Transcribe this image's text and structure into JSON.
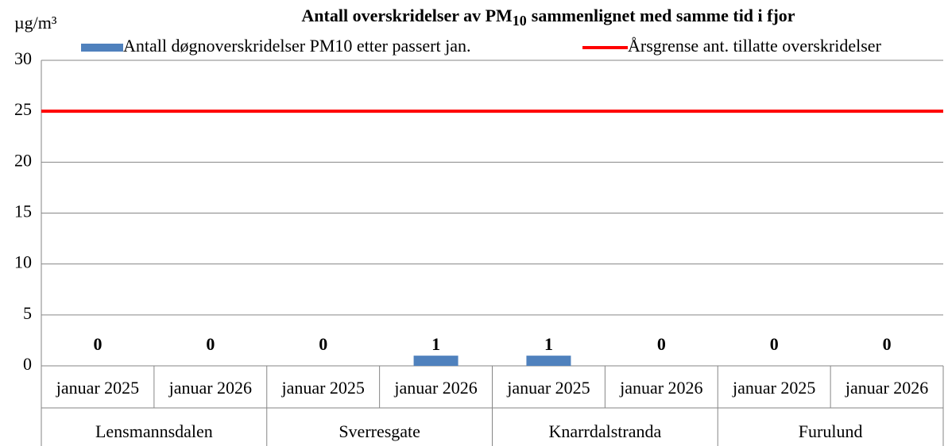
{
  "chart_data": {
    "type": "bar",
    "title": [
      "Antall overskridelser av PM",
      "10",
      "sammenlignet med samme tid i fjor"
    ],
    "y_label": "µg/m³",
    "categories": [
      "januar 2025",
      "januar 2026",
      "januar 2025",
      "januar 2026",
      "januar 2025",
      "januar 2026",
      "januar 2025",
      "januar 2026"
    ],
    "groups": [
      "Lensmannsdalen",
      "Sverresgate",
      "Knarrdalstranda",
      "Furulund"
    ],
    "series": [
      {
        "name": "Antall døgnoverskridelser PM10 etter passert jan.",
        "type": "bar",
        "color": "#4f81bd",
        "values": [
          0,
          0,
          0,
          1,
          1,
          0,
          0,
          0
        ]
      },
      {
        "name": "Årsgrense ant. tillatte overskridelser",
        "type": "line",
        "color": "#ff0000",
        "values": [
          25,
          25,
          25,
          25,
          25,
          25,
          25,
          25
        ]
      }
    ],
    "ylim": [
      0,
      30
    ],
    "yticks": [
      0,
      5,
      10,
      15,
      20,
      25,
      30
    ],
    "grid": true
  }
}
